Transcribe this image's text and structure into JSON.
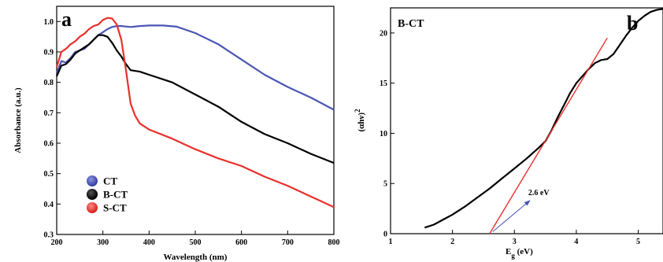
{
  "chart_data": [
    {
      "panel_label": "a",
      "type": "line",
      "xlabel": "Wavelength (nm)",
      "ylabel": "Absorbance (a.u.)",
      "xlim": [
        200,
        800
      ],
      "ylim": [
        0.3,
        1.05
      ],
      "xticks": [
        "200",
        "300",
        "400",
        "500",
        "600",
        "700",
        "800"
      ],
      "yticks": [
        "0.3",
        "0.4",
        "0.5",
        "0.6",
        "0.7",
        "0.8",
        "0.9",
        "1.0"
      ],
      "legend_placement": "bottom-left",
      "series": [
        {
          "name": "CT",
          "color": "#4a55b5",
          "x": [
            200,
            210,
            220,
            230,
            240,
            250,
            260,
            270,
            280,
            290,
            300,
            310,
            320,
            330,
            340,
            360,
            380,
            400,
            430,
            460,
            500,
            550,
            600,
            650,
            700,
            750,
            800
          ],
          "y": [
            0.83,
            0.87,
            0.865,
            0.88,
            0.9,
            0.905,
            0.91,
            0.925,
            0.94,
            0.955,
            0.965,
            0.975,
            0.982,
            0.985,
            0.985,
            0.982,
            0.985,
            0.987,
            0.987,
            0.983,
            0.962,
            0.925,
            0.875,
            0.825,
            0.785,
            0.75,
            0.71
          ]
        },
        {
          "name": "B-CT",
          "color": "#000000",
          "x": [
            200,
            210,
            220,
            230,
            240,
            250,
            260,
            270,
            280,
            290,
            300,
            310,
            320,
            330,
            340,
            350,
            355,
            360,
            380,
            400,
            450,
            500,
            550,
            600,
            650,
            700,
            750,
            800
          ],
          "y": [
            0.82,
            0.855,
            0.86,
            0.875,
            0.895,
            0.905,
            0.915,
            0.925,
            0.94,
            0.955,
            0.955,
            0.95,
            0.93,
            0.905,
            0.885,
            0.86,
            0.85,
            0.84,
            0.835,
            0.825,
            0.8,
            0.76,
            0.72,
            0.67,
            0.63,
            0.6,
            0.565,
            0.535
          ]
        },
        {
          "name": "S-CT",
          "color": "#e8302c",
          "x": [
            200,
            210,
            220,
            230,
            240,
            250,
            260,
            270,
            280,
            290,
            300,
            310,
            320,
            330,
            340,
            350,
            360,
            370,
            380,
            400,
            450,
            500,
            550,
            600,
            650,
            700,
            750,
            800
          ],
          "y": [
            0.85,
            0.9,
            0.91,
            0.925,
            0.935,
            0.95,
            0.96,
            0.975,
            0.985,
            0.99,
            1.005,
            1.012,
            1.01,
            0.99,
            0.94,
            0.84,
            0.73,
            0.69,
            0.665,
            0.645,
            0.615,
            0.58,
            0.55,
            0.525,
            0.49,
            0.46,
            0.425,
            0.39
          ]
        }
      ]
    },
    {
      "panel_label": "b",
      "type": "line",
      "title": "B-CT",
      "xlabel": "E",
      "xlabel_sub": "g",
      "xlabel_unit": " (eV)",
      "ylabel": "(αhν)",
      "ylabel_sup": "2",
      "xlim": [
        1,
        5.4
      ],
      "ylim": [
        0,
        22.5
      ],
      "xticks": [
        "1",
        "2",
        "3",
        "4",
        "5"
      ],
      "yticks": [
        "0",
        "5",
        "10",
        "15",
        "20"
      ],
      "series": [
        {
          "color": "#000000",
          "x": [
            1.55,
            1.7,
            1.85,
            2.0,
            2.2,
            2.4,
            2.6,
            2.8,
            3.0,
            3.2,
            3.4,
            3.5,
            3.6,
            3.7,
            3.8,
            3.9,
            4.0,
            4.1,
            4.2,
            4.3,
            4.4,
            4.5,
            4.6,
            4.7,
            4.8,
            4.9,
            5.0,
            5.1,
            5.2,
            5.3,
            5.4
          ],
          "y": [
            0.6,
            0.9,
            1.4,
            1.9,
            2.7,
            3.6,
            4.5,
            5.5,
            6.5,
            7.5,
            8.6,
            9.2,
            10.3,
            11.6,
            12.8,
            14.0,
            15.0,
            15.7,
            16.4,
            17.0,
            17.3,
            17.4,
            17.9,
            18.8,
            19.7,
            20.5,
            21.2,
            21.7,
            22.1,
            22.3,
            22.4
          ]
        },
        {
          "color": "#e8302c",
          "x": [
            2.6,
            4.5
          ],
          "y": [
            0.0,
            19.5
          ]
        }
      ],
      "annotations": [
        {
          "text": "2.6 eV",
          "arrow_from": [
            2.65,
            0.2
          ],
          "arrow_to": [
            3.25,
            3.3
          ]
        }
      ]
    }
  ]
}
